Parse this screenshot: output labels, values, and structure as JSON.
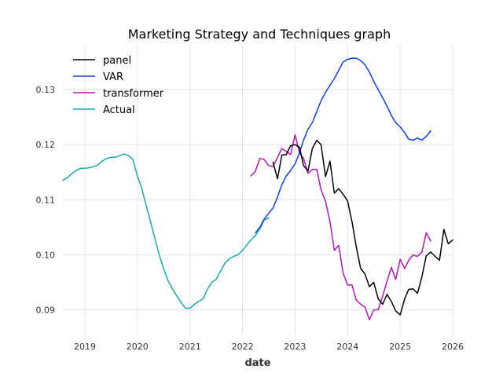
{
  "chart_data": {
    "type": "line",
    "title": "Marketing Strategy and Techniques graph",
    "xlabel": "date",
    "ylabel": "",
    "x_ticks": [
      "2019",
      "2020",
      "2021",
      "2022",
      "2023",
      "2024",
      "2025",
      "2026"
    ],
    "xlim": [
      "2018-08-01",
      "2026-01-01"
    ],
    "y_ticks": [
      "0.09",
      "0.10",
      "0.11",
      "0.12",
      "0.13"
    ],
    "ylim": [
      0.0855,
      0.138
    ],
    "grid": true,
    "legend_position": "top-left",
    "series": [
      {
        "name": "panel",
        "color": "#000000",
        "points": [
          [
            "2022-08-01",
            0.1168
          ],
          [
            "2022-09-01",
            0.1138
          ],
          [
            "2022-10-01",
            0.1181
          ],
          [
            "2022-11-01",
            0.1182
          ],
          [
            "2022-12-01",
            0.1198
          ],
          [
            "2023-01-01",
            0.12
          ],
          [
            "2023-02-01",
            0.1195
          ],
          [
            "2023-03-01",
            0.1162
          ],
          [
            "2023-04-01",
            0.1152
          ],
          [
            "2023-05-01",
            0.1193
          ],
          [
            "2023-06-01",
            0.1208
          ],
          [
            "2023-07-01",
            0.12
          ],
          [
            "2023-08-01",
            0.1142
          ],
          [
            "2023-09-01",
            0.117
          ],
          [
            "2023-10-01",
            0.1112
          ],
          [
            "2023-11-01",
            0.112
          ],
          [
            "2023-12-01",
            0.111
          ],
          [
            "2024-01-01",
            0.1098
          ],
          [
            "2024-02-01",
            0.106
          ],
          [
            "2024-03-01",
            0.1015
          ],
          [
            "2024-04-01",
            0.0975
          ],
          [
            "2024-05-01",
            0.0965
          ],
          [
            "2024-06-01",
            0.0942
          ],
          [
            "2024-07-01",
            0.095
          ],
          [
            "2024-08-01",
            0.092
          ],
          [
            "2024-09-01",
            0.091
          ],
          [
            "2024-10-01",
            0.0928
          ],
          [
            "2024-11-01",
            0.0915
          ],
          [
            "2024-12-01",
            0.0898
          ],
          [
            "2025-01-01",
            0.0891
          ],
          [
            "2025-02-01",
            0.092
          ],
          [
            "2025-03-01",
            0.0937
          ],
          [
            "2025-04-01",
            0.0938
          ],
          [
            "2025-05-01",
            0.093
          ],
          [
            "2025-06-01",
            0.096
          ],
          [
            "2025-07-01",
            0.0998
          ],
          [
            "2025-08-01",
            0.1005
          ],
          [
            "2025-09-01",
            0.0997
          ],
          [
            "2025-10-01",
            0.099
          ],
          [
            "2025-11-01",
            0.1046
          ],
          [
            "2025-12-01",
            0.102
          ],
          [
            "2026-01-01",
            0.1027
          ]
        ]
      },
      {
        "name": "VAR",
        "color": "#0f3fe6",
        "points": [
          [
            "2022-04-01",
            0.104
          ],
          [
            "2022-05-01",
            0.105
          ],
          [
            "2022-06-01",
            0.1065
          ],
          [
            "2022-07-01",
            0.1075
          ],
          [
            "2022-08-01",
            0.1085
          ],
          [
            "2022-09-01",
            0.1105
          ],
          [
            "2022-10-01",
            0.1127
          ],
          [
            "2022-11-01",
            0.1143
          ],
          [
            "2022-12-01",
            0.1153
          ],
          [
            "2023-01-01",
            0.1165
          ],
          [
            "2023-02-01",
            0.1185
          ],
          [
            "2023-03-01",
            0.1208
          ],
          [
            "2023-04-01",
            0.1228
          ],
          [
            "2023-05-01",
            0.124
          ],
          [
            "2023-06-01",
            0.126
          ],
          [
            "2023-07-01",
            0.128
          ],
          [
            "2023-08-01",
            0.1295
          ],
          [
            "2023-09-01",
            0.1308
          ],
          [
            "2023-10-01",
            0.132
          ],
          [
            "2023-11-01",
            0.1335
          ],
          [
            "2023-12-01",
            0.135
          ],
          [
            "2024-01-01",
            0.1355
          ],
          [
            "2024-02-01",
            0.1357
          ],
          [
            "2024-03-01",
            0.1357
          ],
          [
            "2024-04-01",
            0.1353
          ],
          [
            "2024-05-01",
            0.1345
          ],
          [
            "2024-06-01",
            0.1332
          ],
          [
            "2024-07-01",
            0.1315
          ],
          [
            "2024-08-01",
            0.13
          ],
          [
            "2024-09-01",
            0.1285
          ],
          [
            "2024-10-01",
            0.127
          ],
          [
            "2024-11-01",
            0.1253
          ],
          [
            "2024-12-01",
            0.124
          ],
          [
            "2025-01-01",
            0.1232
          ],
          [
            "2025-02-01",
            0.1222
          ],
          [
            "2025-03-01",
            0.121
          ],
          [
            "2025-04-01",
            0.1208
          ],
          [
            "2025-05-01",
            0.1212
          ],
          [
            "2025-06-01",
            0.1208
          ],
          [
            "2025-07-01",
            0.1215
          ],
          [
            "2025-08-01",
            0.1225
          ]
        ]
      },
      {
        "name": "transformer",
        "color": "#b117b8",
        "points": [
          [
            "2022-03-01",
            0.1143
          ],
          [
            "2022-04-01",
            0.1152
          ],
          [
            "2022-05-01",
            0.1175
          ],
          [
            "2022-06-01",
            0.1173
          ],
          [
            "2022-07-01",
            0.1162
          ],
          [
            "2022-08-01",
            0.116
          ],
          [
            "2022-09-01",
            0.1177
          ],
          [
            "2022-10-01",
            0.1193
          ],
          [
            "2022-11-01",
            0.1188
          ],
          [
            "2022-12-01",
            0.1182
          ],
          [
            "2023-01-01",
            0.1218
          ],
          [
            "2023-02-01",
            0.1185
          ],
          [
            "2023-03-01",
            0.1175
          ],
          [
            "2023-04-01",
            0.1148
          ],
          [
            "2023-05-01",
            0.1155
          ],
          [
            "2023-06-01",
            0.1155
          ],
          [
            "2023-07-01",
            0.1118
          ],
          [
            "2023-08-01",
            0.1097
          ],
          [
            "2023-09-01",
            0.106
          ],
          [
            "2023-10-01",
            0.1008
          ],
          [
            "2023-11-01",
            0.1017
          ],
          [
            "2023-12-01",
            0.0967
          ],
          [
            "2024-01-01",
            0.0945
          ],
          [
            "2024-02-01",
            0.0945
          ],
          [
            "2024-03-01",
            0.0918
          ],
          [
            "2024-04-01",
            0.091
          ],
          [
            "2024-05-01",
            0.0905
          ],
          [
            "2024-06-01",
            0.0882
          ],
          [
            "2024-07-01",
            0.09
          ],
          [
            "2024-08-01",
            0.09
          ],
          [
            "2024-09-01",
            0.0925
          ],
          [
            "2024-10-01",
            0.0952
          ],
          [
            "2024-11-01",
            0.0977
          ],
          [
            "2024-12-01",
            0.0955
          ],
          [
            "2025-01-01",
            0.0992
          ],
          [
            "2025-02-01",
            0.0975
          ],
          [
            "2025-03-01",
            0.099
          ],
          [
            "2025-04-01",
            0.1
          ],
          [
            "2025-05-01",
            0.0997
          ],
          [
            "2025-06-01",
            0.1005
          ],
          [
            "2025-07-01",
            0.104
          ],
          [
            "2025-08-01",
            0.1025
          ]
        ]
      },
      {
        "name": "Actual",
        "color": "#1ba8b0",
        "points": [
          [
            "2018-08-01",
            0.1135
          ],
          [
            "2018-09-01",
            0.114
          ],
          [
            "2018-10-01",
            0.1147
          ],
          [
            "2018-11-01",
            0.1153
          ],
          [
            "2018-12-01",
            0.1157
          ],
          [
            "2019-01-01",
            0.1157
          ],
          [
            "2019-02-01",
            0.1158
          ],
          [
            "2019-03-01",
            0.116
          ],
          [
            "2019-04-01",
            0.1163
          ],
          [
            "2019-05-01",
            0.117
          ],
          [
            "2019-06-01",
            0.1175
          ],
          [
            "2019-07-01",
            0.1177
          ],
          [
            "2019-08-01",
            0.1177
          ],
          [
            "2019-09-01",
            0.118
          ],
          [
            "2019-10-01",
            0.1183
          ],
          [
            "2019-11-01",
            0.118
          ],
          [
            "2019-12-01",
            0.1173
          ],
          [
            "2020-01-01",
            0.1143
          ],
          [
            "2020-02-01",
            0.112
          ],
          [
            "2020-03-01",
            0.109
          ],
          [
            "2020-04-01",
            0.106
          ],
          [
            "2020-05-01",
            0.103
          ],
          [
            "2020-06-01",
            0.1
          ],
          [
            "2020-07-01",
            0.0975
          ],
          [
            "2020-08-01",
            0.0953
          ],
          [
            "2020-09-01",
            0.0938
          ],
          [
            "2020-10-01",
            0.0925
          ],
          [
            "2020-11-01",
            0.0913
          ],
          [
            "2020-12-01",
            0.0903
          ],
          [
            "2021-01-01",
            0.0903
          ],
          [
            "2021-02-01",
            0.091
          ],
          [
            "2021-03-01",
            0.0915
          ],
          [
            "2021-04-01",
            0.092
          ],
          [
            "2021-05-01",
            0.0937
          ],
          [
            "2021-06-01",
            0.095
          ],
          [
            "2021-07-01",
            0.0955
          ],
          [
            "2021-08-01",
            0.097
          ],
          [
            "2021-09-01",
            0.0985
          ],
          [
            "2021-10-01",
            0.0993
          ],
          [
            "2021-11-01",
            0.0997
          ],
          [
            "2021-12-01",
            0.1
          ],
          [
            "2022-01-01",
            0.1008
          ],
          [
            "2022-02-01",
            0.1018
          ],
          [
            "2022-03-01",
            0.1027
          ],
          [
            "2022-04-01",
            0.1035
          ],
          [
            "2022-05-01",
            0.1047
          ],
          [
            "2022-06-01",
            0.1063
          ],
          [
            "2022-07-01",
            0.1067
          ]
        ]
      }
    ]
  }
}
